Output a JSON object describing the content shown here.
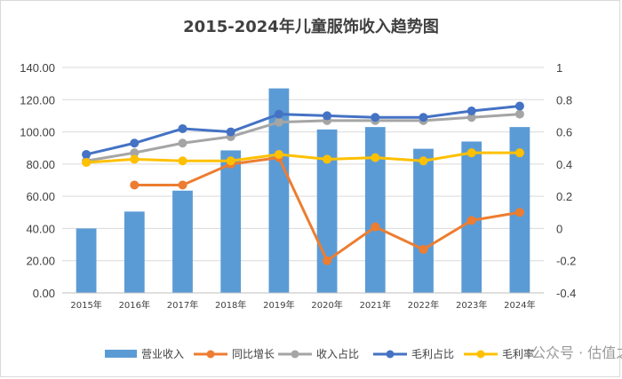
{
  "chart_data": {
    "type": "bar+line",
    "title": "2015-2024年儿童服饰收入趋势图",
    "categories": [
      "2015年",
      "2016年",
      "2017年",
      "2018年",
      "2019年",
      "2020年",
      "2021年",
      "2022年",
      "2023年",
      "2024年"
    ],
    "y_left": {
      "ylim": [
        0,
        140
      ],
      "ticks": [
        "0.00",
        "20.00",
        "40.00",
        "60.00",
        "80.00",
        "100.00",
        "120.00",
        "140.00"
      ]
    },
    "y_right": {
      "ylim": [
        -0.4,
        1
      ],
      "ticks": [
        "-0.4",
        "-0.2",
        "0",
        "0.2",
        "0.4",
        "0.6",
        "0.8",
        "1"
      ]
    },
    "series": [
      {
        "name": "营业收入",
        "type": "bar",
        "axis": "left",
        "color": "#5b9bd5",
        "values": [
          40,
          50.5,
          63.5,
          88.5,
          127,
          101.5,
          103,
          89.5,
          94,
          103
        ]
      },
      {
        "name": "同比增长",
        "type": "line",
        "axis": "right",
        "color": "#ed7d31",
        "values": [
          null,
          0.27,
          0.27,
          0.4,
          0.44,
          -0.2,
          0.01,
          -0.13,
          0.05,
          0.1
        ]
      },
      {
        "name": "收入占比",
        "type": "line",
        "axis": "right",
        "color": "#a5a5a5",
        "values": [
          0.42,
          0.47,
          0.53,
          0.57,
          0.66,
          0.67,
          0.67,
          0.67,
          0.69,
          0.71
        ]
      },
      {
        "name": "毛利占比",
        "type": "line",
        "axis": "right",
        "color": "#4472c4",
        "values": [
          0.46,
          0.53,
          0.62,
          0.6,
          0.71,
          0.7,
          0.69,
          0.69,
          0.73,
          0.76
        ]
      },
      {
        "name": "毛利率",
        "type": "line",
        "axis": "right",
        "color": "#ffc000",
        "values": [
          0.41,
          0.43,
          0.42,
          0.42,
          0.46,
          0.43,
          0.44,
          0.42,
          0.47,
          0.47
        ]
      }
    ],
    "legend_position": "bottom",
    "grid": true
  },
  "watermark": "公众号 · 估值之家"
}
